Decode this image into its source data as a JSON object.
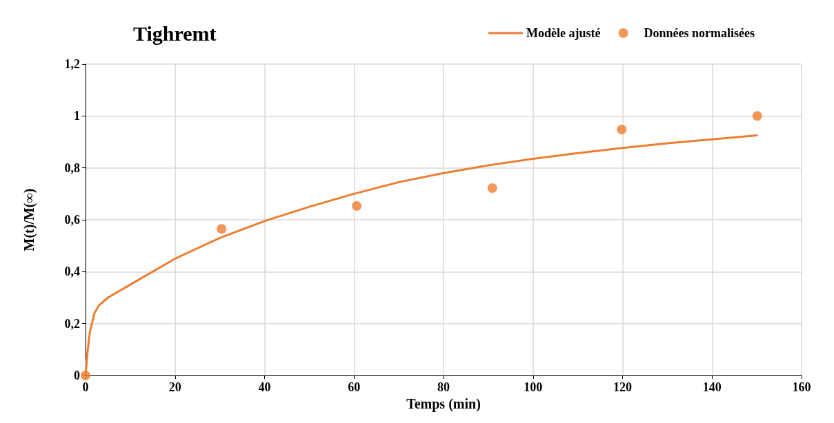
{
  "chart_data": {
    "type": "line",
    "title": "Tighremt",
    "xlabel": "Temps (min)",
    "ylabel": "M(t)/M(∞)",
    "xlim": [
      0,
      160
    ],
    "xticks": [
      0,
      20,
      40,
      60,
      80,
      100,
      120,
      140,
      160
    ],
    "ylim": [
      0,
      1.2
    ],
    "yticks": [
      {
        "value": 0,
        "label": "0"
      },
      {
        "value": 0.2,
        "label": "0,2"
      },
      {
        "value": 0.4,
        "label": "0,4"
      },
      {
        "value": 0.6,
        "label": "0,6"
      },
      {
        "value": 0.8,
        "label": "0,8"
      },
      {
        "value": 1,
        "label": "1"
      },
      {
        "value": 1.2,
        "label": "1,2"
      }
    ],
    "grid": true,
    "legend": "top right",
    "series": [
      {
        "name": "Modèle ajusté",
        "marker": "none",
        "line_style": "solid",
        "color": "#ed7d31",
        "x": [
          0,
          0.5,
          1,
          2,
          3,
          5,
          10,
          20,
          30,
          40,
          50,
          60,
          70,
          80,
          90,
          100,
          110,
          120,
          130,
          140,
          150
        ],
        "values": [
          0,
          0.1,
          0.17,
          0.24,
          0.27,
          0.3,
          0.35,
          0.45,
          0.53,
          0.595,
          0.65,
          0.7,
          0.745,
          0.78,
          0.81,
          0.835,
          0.857,
          0.877,
          0.895,
          0.91,
          0.925
        ]
      },
      {
        "name": "Données normalisées",
        "type": "scatter",
        "marker": "circle",
        "color": "#ed7d31",
        "x": [
          0,
          30.4,
          60.6,
          90.9,
          119.8,
          150.1
        ],
        "values": [
          0,
          0.565,
          0.653,
          0.722,
          0.948,
          1.0
        ]
      }
    ]
  }
}
